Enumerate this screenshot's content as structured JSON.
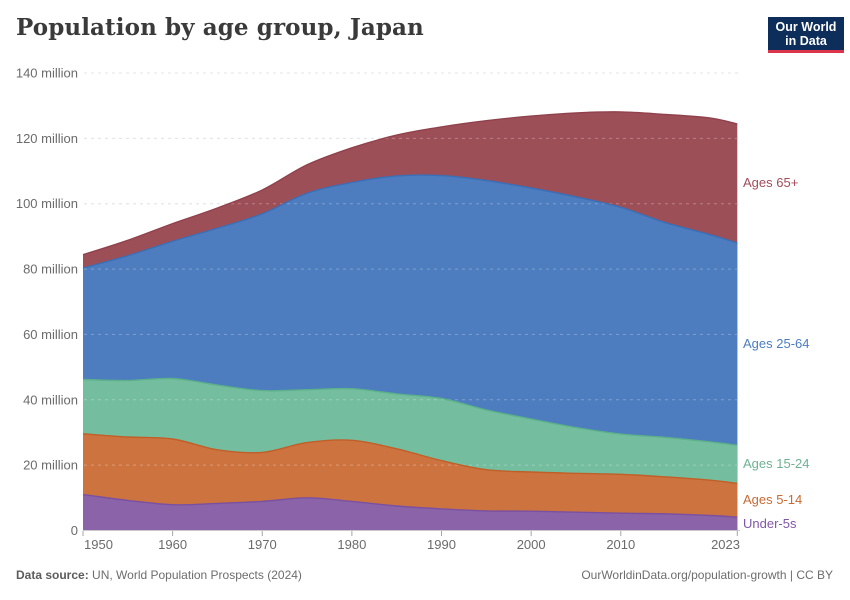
{
  "header": {
    "title": "Population by age group, Japan",
    "logo": {
      "line1": "Our World",
      "line2": "in Data",
      "bg": "#0d2e5b",
      "accent": "#dc354b"
    }
  },
  "footer": {
    "source_label": "Data source:",
    "source_text": " UN, World Population Prospects (2024)",
    "right_text": "OurWorldinData.org/population-growth | CC BY"
  },
  "chart_data": {
    "type": "area",
    "stacked": true,
    "title": "Population by age group, Japan",
    "unit": "million",
    "x": [
      1950,
      1955,
      1960,
      1965,
      1970,
      1975,
      1980,
      1985,
      1990,
      1995,
      2000,
      2005,
      2010,
      2015,
      2020,
      2023
    ],
    "series": [
      {
        "name": "Under-5s",
        "values": [
          11.0,
          9.2,
          7.9,
          8.3,
          8.9,
          10.0,
          8.9,
          7.5,
          6.6,
          6.0,
          5.9,
          5.6,
          5.3,
          5.1,
          4.6,
          4.1
        ],
        "fill": "#8b63a8",
        "line": "#7a50a0",
        "label_color": "#8257ab"
      },
      {
        "name": "Ages 5-14",
        "values": [
          18.6,
          19.4,
          20.1,
          16.4,
          15.0,
          16.9,
          18.7,
          17.5,
          14.8,
          12.6,
          12.0,
          11.9,
          11.9,
          11.3,
          10.8,
          10.3
        ],
        "fill": "#cd7340",
        "line": "#c05f28",
        "label_color": "#c96a32"
      },
      {
        "name": "Ages 15-24",
        "values": [
          16.6,
          17.3,
          18.5,
          19.8,
          18.9,
          16.2,
          15.8,
          16.8,
          19.0,
          18.3,
          16.2,
          14.0,
          12.3,
          12.1,
          11.7,
          11.7
        ],
        "fill": "#75bd9f",
        "line": "#5bb18a",
        "label_color": "#6fb293"
      },
      {
        "name": "Ages 25-64",
        "values": [
          34.1,
          38.2,
          42.0,
          48.0,
          54.1,
          60.1,
          63.1,
          66.7,
          68.2,
          70.2,
          70.7,
          70.6,
          69.4,
          65.7,
          63.4,
          61.9
        ],
        "fill": "#4d7cbf",
        "line": "#3a6fb7",
        "label_color": "#4c7dc0"
      },
      {
        "name": "Ages 65+",
        "values": [
          4.1,
          4.7,
          5.4,
          6.2,
          7.3,
          8.7,
          10.6,
          12.5,
          14.9,
          18.3,
          22.0,
          25.7,
          29.2,
          33.1,
          35.7,
          36.4
        ],
        "fill": "#9d4f58",
        "line": "#90414c",
        "label_color": "#a24c59"
      }
    ],
    "xlim": [
      1950,
      2023
    ],
    "ylim": [
      0,
      140
    ],
    "xticks": [
      1950,
      1960,
      1970,
      1980,
      1990,
      2000,
      2010,
      2023
    ],
    "yticks": [
      0,
      20,
      40,
      60,
      80,
      100,
      120,
      140
    ],
    "ytick_labels": [
      "0",
      "20 million",
      "40 million",
      "60 million",
      "80 million",
      "100 million",
      "120 million",
      "140 million"
    ],
    "grid": "horizontal dashed",
    "legend_position": "right edge, series-colored labels",
    "xlabel": "",
    "ylabel": ""
  }
}
